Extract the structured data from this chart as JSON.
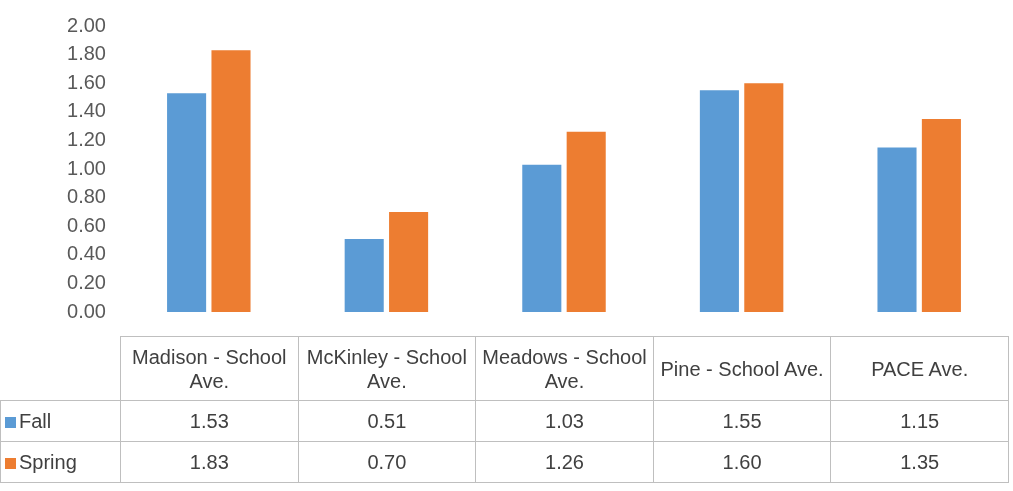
{
  "chart_data": {
    "type": "bar",
    "categories": [
      "Madison - School Ave.",
      "McKinley - School Ave.",
      "Meadows - School Ave.",
      "Pine - School Ave.",
      "PACE Ave."
    ],
    "series": [
      {
        "name": "Fall",
        "color": "#5b9bd5",
        "values": [
          1.53,
          0.51,
          1.03,
          1.55,
          1.15
        ],
        "value_labels": [
          "1.53",
          "0.51",
          "1.03",
          "1.55",
          "1.15"
        ]
      },
      {
        "name": "Spring",
        "color": "#ed7d31",
        "values": [
          1.83,
          0.7,
          1.26,
          1.6,
          1.35
        ],
        "value_labels": [
          "1.83",
          "0.70",
          "1.26",
          "1.60",
          "1.35"
        ]
      }
    ],
    "ylim": [
      0,
      2
    ],
    "yticks": [
      {
        "value": 0,
        "label": "0.00"
      },
      {
        "value": 0.2,
        "label": "0.20"
      },
      {
        "value": 0.4,
        "label": "0.40"
      },
      {
        "value": 0.6,
        "label": "0.60"
      },
      {
        "value": 0.8,
        "label": "0.80"
      },
      {
        "value": 1,
        "label": "1.00"
      },
      {
        "value": 1.2,
        "label": "1.20"
      },
      {
        "value": 1.4,
        "label": "1.40"
      },
      {
        "value": 1.6,
        "label": "1.60"
      },
      {
        "value": 1.8,
        "label": "1.80"
      },
      {
        "value": 2,
        "label": "2.00"
      }
    ],
    "grid": false,
    "legend": "bottom left"
  }
}
